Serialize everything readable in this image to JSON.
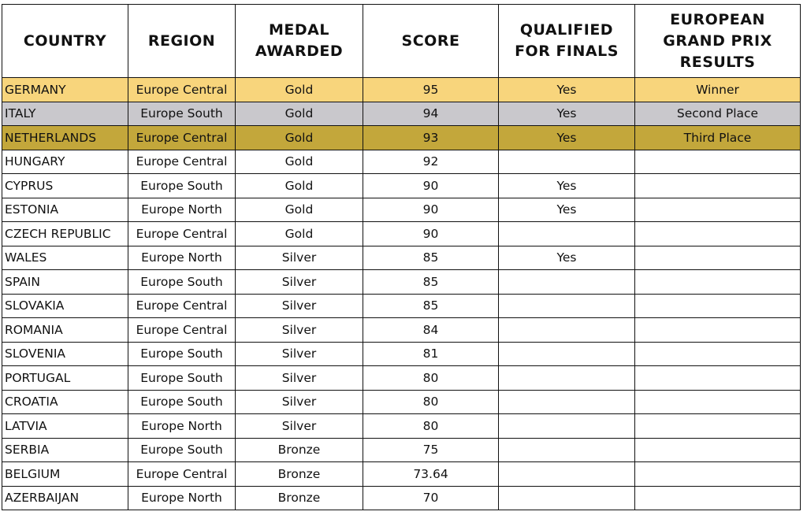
{
  "table": {
    "headers": [
      [
        "COUNTRY"
      ],
      [
        "REGION"
      ],
      [
        "MEDAL",
        "AWARDED"
      ],
      [
        "SCORE"
      ],
      [
        "QUALIFIED",
        "FOR FINALS"
      ],
      [
        "EUROPEAN",
        "GRAND PRIX",
        "RESULTS"
      ]
    ],
    "rows": [
      [
        "GERMANY",
        "Europe Central",
        "Gold",
        95,
        "Yes",
        "Winner"
      ],
      [
        "ITALY",
        "Europe South",
        "Gold",
        94,
        "Yes",
        "Second Place"
      ],
      [
        "NETHERLANDS",
        "Europe Central",
        "Gold",
        93,
        "Yes",
        "Third Place"
      ],
      [
        "HUNGARY",
        "Europe Central",
        "Gold",
        92,
        null,
        null
      ],
      [
        "CYPRUS",
        "Europe South",
        "Gold",
        90,
        "Yes",
        null
      ],
      [
        "ESTONIA",
        "Europe North",
        "Gold",
        90,
        "Yes",
        null
      ],
      [
        "CZECH REPUBLIC",
        "Europe Central",
        "Gold",
        90,
        null,
        null
      ],
      [
        "WALES",
        "Europe North",
        "Silver",
        85,
        "Yes",
        null
      ],
      [
        "SPAIN",
        "Europe South",
        "Silver",
        85,
        null,
        null
      ],
      [
        "SLOVAKIA",
        "Europe Central",
        "Silver",
        85,
        null,
        null
      ],
      [
        "ROMANIA",
        "Europe Central",
        "Silver",
        84,
        null,
        null
      ],
      [
        "SLOVENIA",
        "Europe South",
        "Silver",
        81,
        null,
        null
      ],
      [
        "PORTUGAL",
        "Europe South",
        "Silver",
        80,
        null,
        null
      ],
      [
        "CROATIA",
        "Europe South",
        "Silver",
        80,
        null,
        null
      ],
      [
        "LATVIA",
        "Europe North",
        "Silver",
        80,
        null,
        null
      ],
      [
        "SERBIA",
        "Europe South",
        "Bronze",
        75,
        null,
        null
      ],
      [
        "BELGIUM",
        "Europe Central",
        "Bronze",
        73.64,
        null,
        null
      ],
      [
        "AZERBAIJAN",
        "Europe North",
        "Bronze",
        70,
        null,
        null
      ]
    ]
  }
}
